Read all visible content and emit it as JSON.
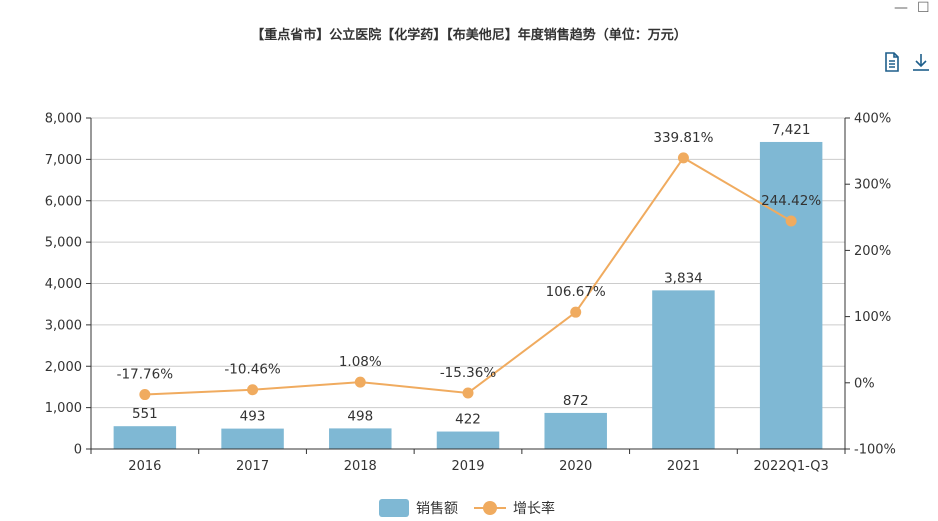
{
  "chart_data": {
    "type": "bar",
    "title": "【重点省市】公立医院【化学药】【布美他尼】年度销售趋势（单位：万元）",
    "categories": [
      "2016",
      "2017",
      "2018",
      "2019",
      "2020",
      "2021",
      "2022Q1-Q3"
    ],
    "series": [
      {
        "name": "销售额",
        "type": "bar",
        "axis": "left",
        "color": "#7fb8d4",
        "values": [
          551,
          493,
          498,
          422,
          872,
          3834,
          7421
        ],
        "labels": [
          "551",
          "493",
          "498",
          "422",
          "872",
          "3,834",
          "7,421"
        ]
      },
      {
        "name": "增长率",
        "type": "line",
        "axis": "right",
        "color": "#f0ab5f",
        "values": [
          -17.76,
          -10.46,
          1.08,
          -15.36,
          106.67,
          339.81,
          244.42
        ],
        "labels": [
          "-17.76%",
          "-10.46%",
          "1.08%",
          "-15.36%",
          "106.67%",
          "339.81%",
          "244.42%"
        ]
      }
    ],
    "y_left": {
      "min": 0,
      "max": 8000,
      "ticks": [
        0,
        1000,
        2000,
        3000,
        4000,
        5000,
        6000,
        7000,
        8000
      ],
      "tick_labels": [
        "0",
        "1,000",
        "2,000",
        "3,000",
        "4,000",
        "5,000",
        "6,000",
        "7,000",
        "8,000"
      ]
    },
    "y_right": {
      "min": -100,
      "max": 400,
      "ticks": [
        -100,
        0,
        100,
        200,
        300,
        400
      ],
      "tick_labels": [
        "-100%",
        "0%",
        "100%",
        "200%",
        "300%",
        "400%"
      ]
    },
    "grid": true,
    "legend": "bottom-center"
  },
  "window_controls": {
    "minimize": "—",
    "maximize": "☐"
  },
  "toolbar": {
    "icons": [
      "document-icon",
      "download-icon"
    ]
  }
}
